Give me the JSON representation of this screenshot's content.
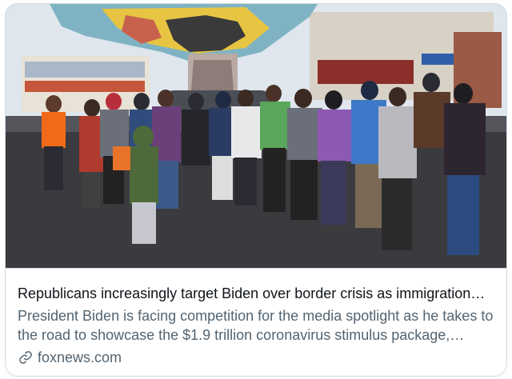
{
  "card": {
    "headline": "Republicans increasingly target Biden over border crisis as immigration…",
    "description": "President Biden is facing competition for the media spotlight as he takes to the road to showcase the $1.9 trillion coronavirus stimulus package,…",
    "domain": "foxnews.com",
    "domain_icon": "link-icon"
  },
  "photo": {
    "mural_sign_text": "",
    "storefront_sign_text": ""
  },
  "colors": {
    "title": "#0f1419",
    "secondary": "#536471",
    "border": "#cfd9de"
  }
}
